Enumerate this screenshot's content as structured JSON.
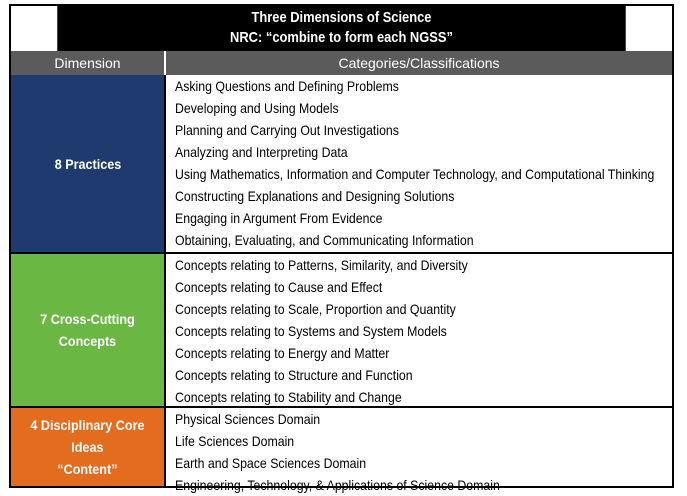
{
  "title": {
    "line1": "Three Dimensions of Science",
    "line2": "NRC: “combine to form each NGSS”"
  },
  "headers": {
    "dimension": "Dimension",
    "categories": "Categories/Classifications"
  },
  "colors": {
    "practices": "#1f3a6e",
    "crosscutting": "#6ab843",
    "core_ideas": "#e46c1e",
    "header_band": "#5b5b5b",
    "title_band": "#000000"
  },
  "groups": [
    {
      "dimension": "8 Practices",
      "items": [
        "Asking Questions and Defining Problems",
        "Developing and Using Models",
        "Planning and Carrying Out Investigations",
        "Analyzing and Interpreting Data",
        "Using Mathematics, Information and Computer Technology, and Computational Thinking",
        "Constructing Explanations and Designing Solutions",
        "Engaging in Argument From Evidence",
        "Obtaining, Evaluating, and Communicating Information"
      ]
    },
    {
      "dimension": "7 Cross-Cutting\nConcepts",
      "items": [
        "Concepts relating to Patterns, Similarity, and Diversity",
        "Concepts relating to Cause and Effect",
        "Concepts relating to Scale, Proportion and Quantity",
        "Concepts relating to Systems and System Models",
        "Concepts relating to Energy and Matter",
        "Concepts relating to Structure and Function",
        "Concepts relating to Stability and Change"
      ]
    },
    {
      "dimension": "4 Disciplinary Core\nIdeas\n“Content”",
      "items": [
        "Physical Sciences Domain",
        "Life Sciences Domain",
        "Earth and Space Sciences Domain",
        "Engineering, Technology, & Applications of Science Domain"
      ]
    }
  ]
}
